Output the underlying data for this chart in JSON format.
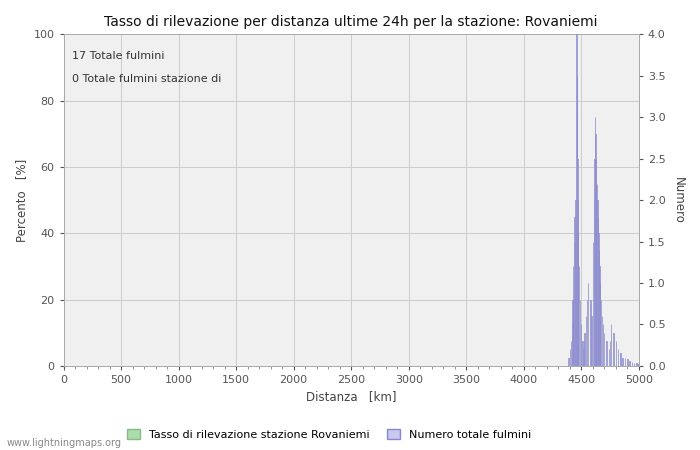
{
  "title": "Tasso di rilevazione per distanza ultime 24h per la stazione: Rovaniemi",
  "xlabel": "Distanza   [km]",
  "ylabel_left": "Percento   [%]",
  "ylabel_right": "Numero",
  "annotation_line1": "17 Totale fulmini",
  "annotation_line2": "0 Totale fulmini stazione di",
  "legend_label_green": "Tasso di rilevazione stazione Rovaniemi",
  "legend_label_blue": "Numero totale fulmini",
  "watermark": "www.lightningmaps.org",
  "xlim": [
    0,
    5000
  ],
  "ylim_left": [
    0,
    100
  ],
  "ylim_right": [
    0,
    4.0
  ],
  "xticks": [
    0,
    500,
    1000,
    1500,
    2000,
    2500,
    3000,
    3500,
    4000,
    4500,
    5000
  ],
  "yticks_left": [
    0,
    20,
    40,
    60,
    80,
    100
  ],
  "yticks_right": [
    0.0,
    0.5,
    1.0,
    1.5,
    2.0,
    2.5,
    3.0,
    3.5,
    4.0
  ],
  "bar_color_fill": "#c8c8f0",
  "bar_color_edge": "#8888cc",
  "green_color": "#aaddaa",
  "green_edge": "#88bb88",
  "bg_color": "#f0f0f0",
  "grid_color": "#cccccc",
  "spike_x": [
    4390,
    4400,
    4410,
    4420,
    4425,
    4430,
    4435,
    4440,
    4445,
    4450,
    4455,
    4460,
    4462,
    4464,
    4466,
    4468,
    4470,
    4480,
    4490,
    4500,
    4510,
    4520,
    4525,
    4530,
    4540,
    4550,
    4560,
    4580,
    4590,
    4600,
    4610,
    4615,
    4620,
    4625,
    4630,
    4635,
    4640,
    4645,
    4650,
    4655,
    4660,
    4665,
    4670,
    4680,
    4690,
    4700,
    4720,
    4740,
    4750,
    4760,
    4780,
    4800,
    4820,
    4840,
    4860,
    4880,
    4900,
    4920,
    4940,
    4960,
    4980,
    4990
  ],
  "spike_y": [
    0.1,
    0.2,
    0.3,
    0.5,
    0.8,
    1.2,
    1.5,
    1.8,
    1.5,
    2.0,
    1.7,
    4.0,
    3.5,
    3.0,
    2.5,
    2.0,
    1.6,
    1.2,
    0.8,
    0.5,
    0.3,
    0.2,
    0.3,
    0.4,
    0.6,
    0.8,
    1.0,
    0.8,
    0.6,
    1.5,
    2.0,
    2.5,
    3.0,
    2.8,
    2.5,
    2.2,
    2.0,
    1.8,
    1.6,
    1.4,
    1.2,
    1.0,
    0.8,
    0.6,
    0.5,
    0.4,
    0.3,
    0.2,
    0.3,
    0.5,
    0.4,
    0.3,
    0.2,
    0.15,
    0.1,
    0.1,
    0.08,
    0.06,
    0.05,
    0.04,
    0.03,
    0.02
  ]
}
